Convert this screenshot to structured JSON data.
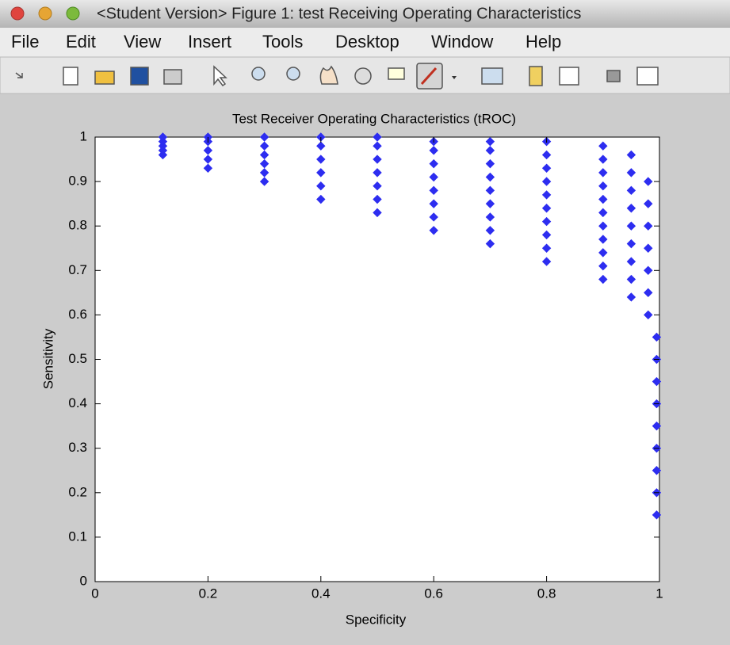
{
  "window": {
    "title": "<Student Version> Figure 1: test Receiving Operating Characteristics"
  },
  "menu": [
    "File",
    "Edit",
    "View",
    "Insert",
    "Tools",
    "Desktop",
    "Window",
    "Help"
  ],
  "chart_data": {
    "type": "scatter",
    "title": "Test Receiver Operating Characteristics (tROC)",
    "xlabel": "Specificity",
    "ylabel": "Sensitivity",
    "color": "#2d2df0",
    "marker": "diamond",
    "xlim": [
      0,
      1
    ],
    "ylim": [
      0,
      1
    ],
    "xticks": [
      0,
      0.2,
      0.4,
      0.6,
      0.8,
      1
    ],
    "yticks": [
      0,
      0.1,
      0.2,
      0.3,
      0.4,
      0.5,
      0.6,
      0.7,
      0.8,
      0.9,
      1
    ],
    "x": [
      0.12,
      0.12,
      0.12,
      0.12,
      0.12,
      0.2,
      0.2,
      0.2,
      0.2,
      0.2,
      0.3,
      0.3,
      0.3,
      0.3,
      0.3,
      0.3,
      0.4,
      0.4,
      0.4,
      0.4,
      0.4,
      0.4,
      0.5,
      0.5,
      0.5,
      0.5,
      0.5,
      0.5,
      0.5,
      0.6,
      0.6,
      0.6,
      0.6,
      0.6,
      0.6,
      0.6,
      0.6,
      0.7,
      0.7,
      0.7,
      0.7,
      0.7,
      0.7,
      0.7,
      0.7,
      0.7,
      0.8,
      0.8,
      0.8,
      0.8,
      0.8,
      0.8,
      0.8,
      0.8,
      0.8,
      0.8,
      0.9,
      0.9,
      0.9,
      0.9,
      0.9,
      0.9,
      0.9,
      0.9,
      0.9,
      0.9,
      0.9,
      0.95,
      0.95,
      0.95,
      0.95,
      0.95,
      0.95,
      0.95,
      0.95,
      0.95,
      0.98,
      0.98,
      0.98,
      0.98,
      0.98,
      0.98,
      0.98,
      0.995,
      0.995,
      0.995,
      0.995,
      0.995,
      0.995,
      0.995,
      0.995,
      0.995
    ],
    "values": [
      0.96,
      0.97,
      0.98,
      0.99,
      1.0,
      0.93,
      0.95,
      0.97,
      0.99,
      1.0,
      0.9,
      0.92,
      0.94,
      0.96,
      0.98,
      1.0,
      0.86,
      0.89,
      0.92,
      0.95,
      0.98,
      1.0,
      0.83,
      0.86,
      0.89,
      0.92,
      0.95,
      0.98,
      1.0,
      0.79,
      0.82,
      0.85,
      0.88,
      0.91,
      0.94,
      0.97,
      0.99,
      0.76,
      0.79,
      0.82,
      0.85,
      0.88,
      0.91,
      0.94,
      0.97,
      0.99,
      0.72,
      0.75,
      0.78,
      0.81,
      0.84,
      0.87,
      0.9,
      0.93,
      0.96,
      0.99,
      0.68,
      0.71,
      0.74,
      0.77,
      0.8,
      0.83,
      0.86,
      0.89,
      0.92,
      0.95,
      0.98,
      0.64,
      0.68,
      0.72,
      0.76,
      0.8,
      0.84,
      0.88,
      0.92,
      0.96,
      0.6,
      0.65,
      0.7,
      0.75,
      0.8,
      0.85,
      0.9,
      0.15,
      0.2,
      0.25,
      0.3,
      0.35,
      0.4,
      0.45,
      0.5,
      0.55
    ]
  }
}
